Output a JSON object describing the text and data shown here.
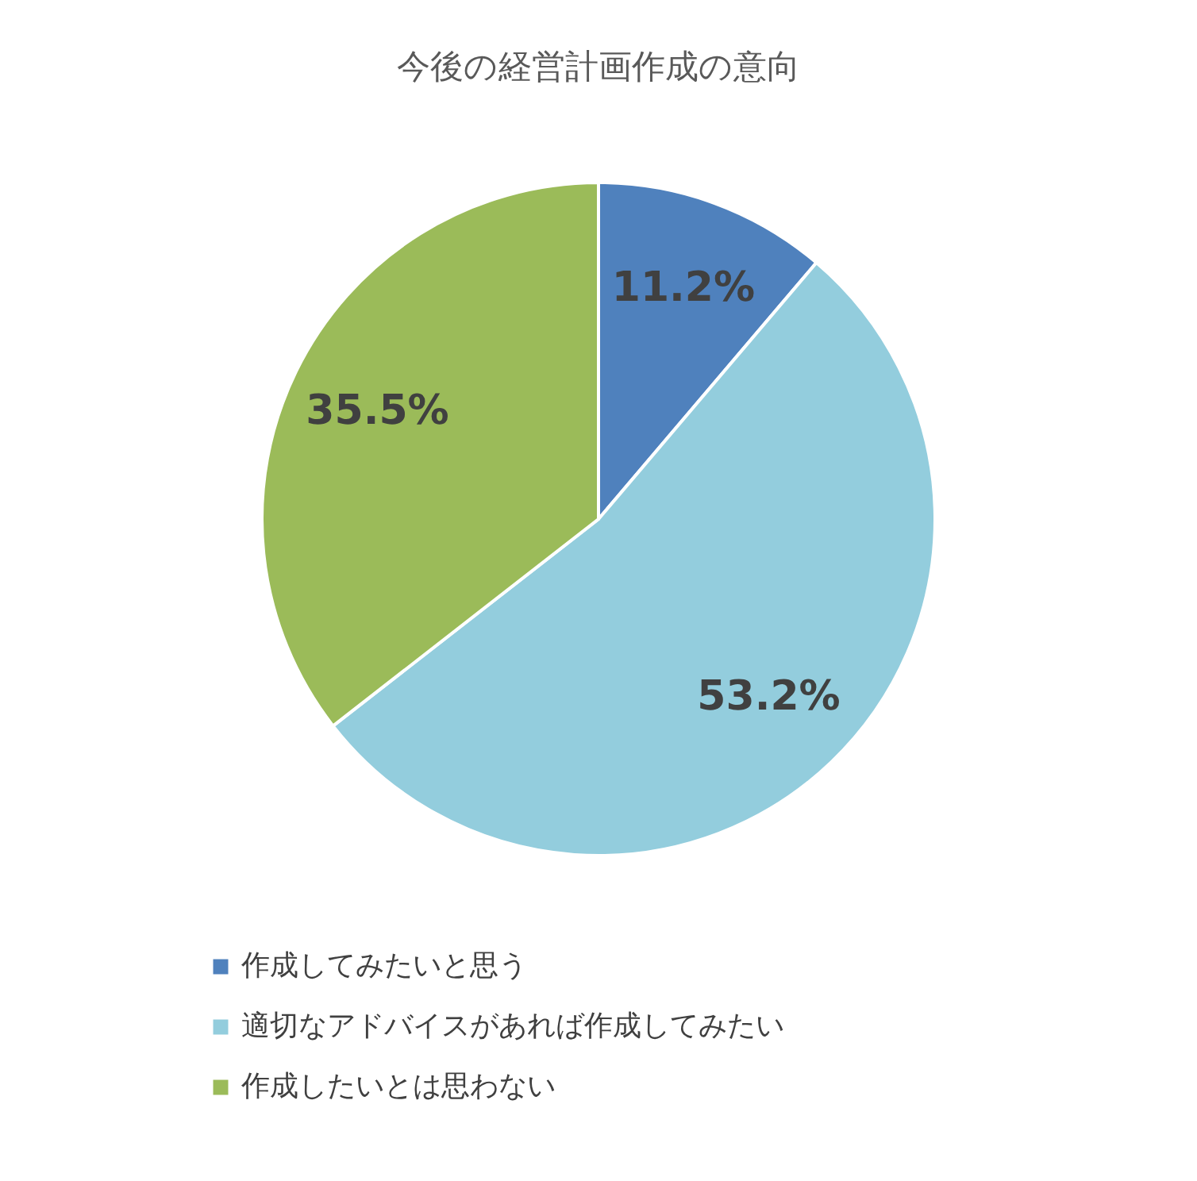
{
  "chart_data": {
    "type": "pie",
    "title": "今後の経営計画作成の意向",
    "categories": [
      "作成してみたいと思う",
      "適切なアドバイスがあれば作成してみたい",
      "作成したいとは思わない"
    ],
    "values": [
      11.2,
      53.2,
      35.5
    ],
    "colors": [
      "#4f81bd",
      "#93cddd",
      "#9bbb59"
    ],
    "value_labels": [
      "11.2%",
      "53.2%",
      "35.5%"
    ],
    "legend": "bottom"
  }
}
